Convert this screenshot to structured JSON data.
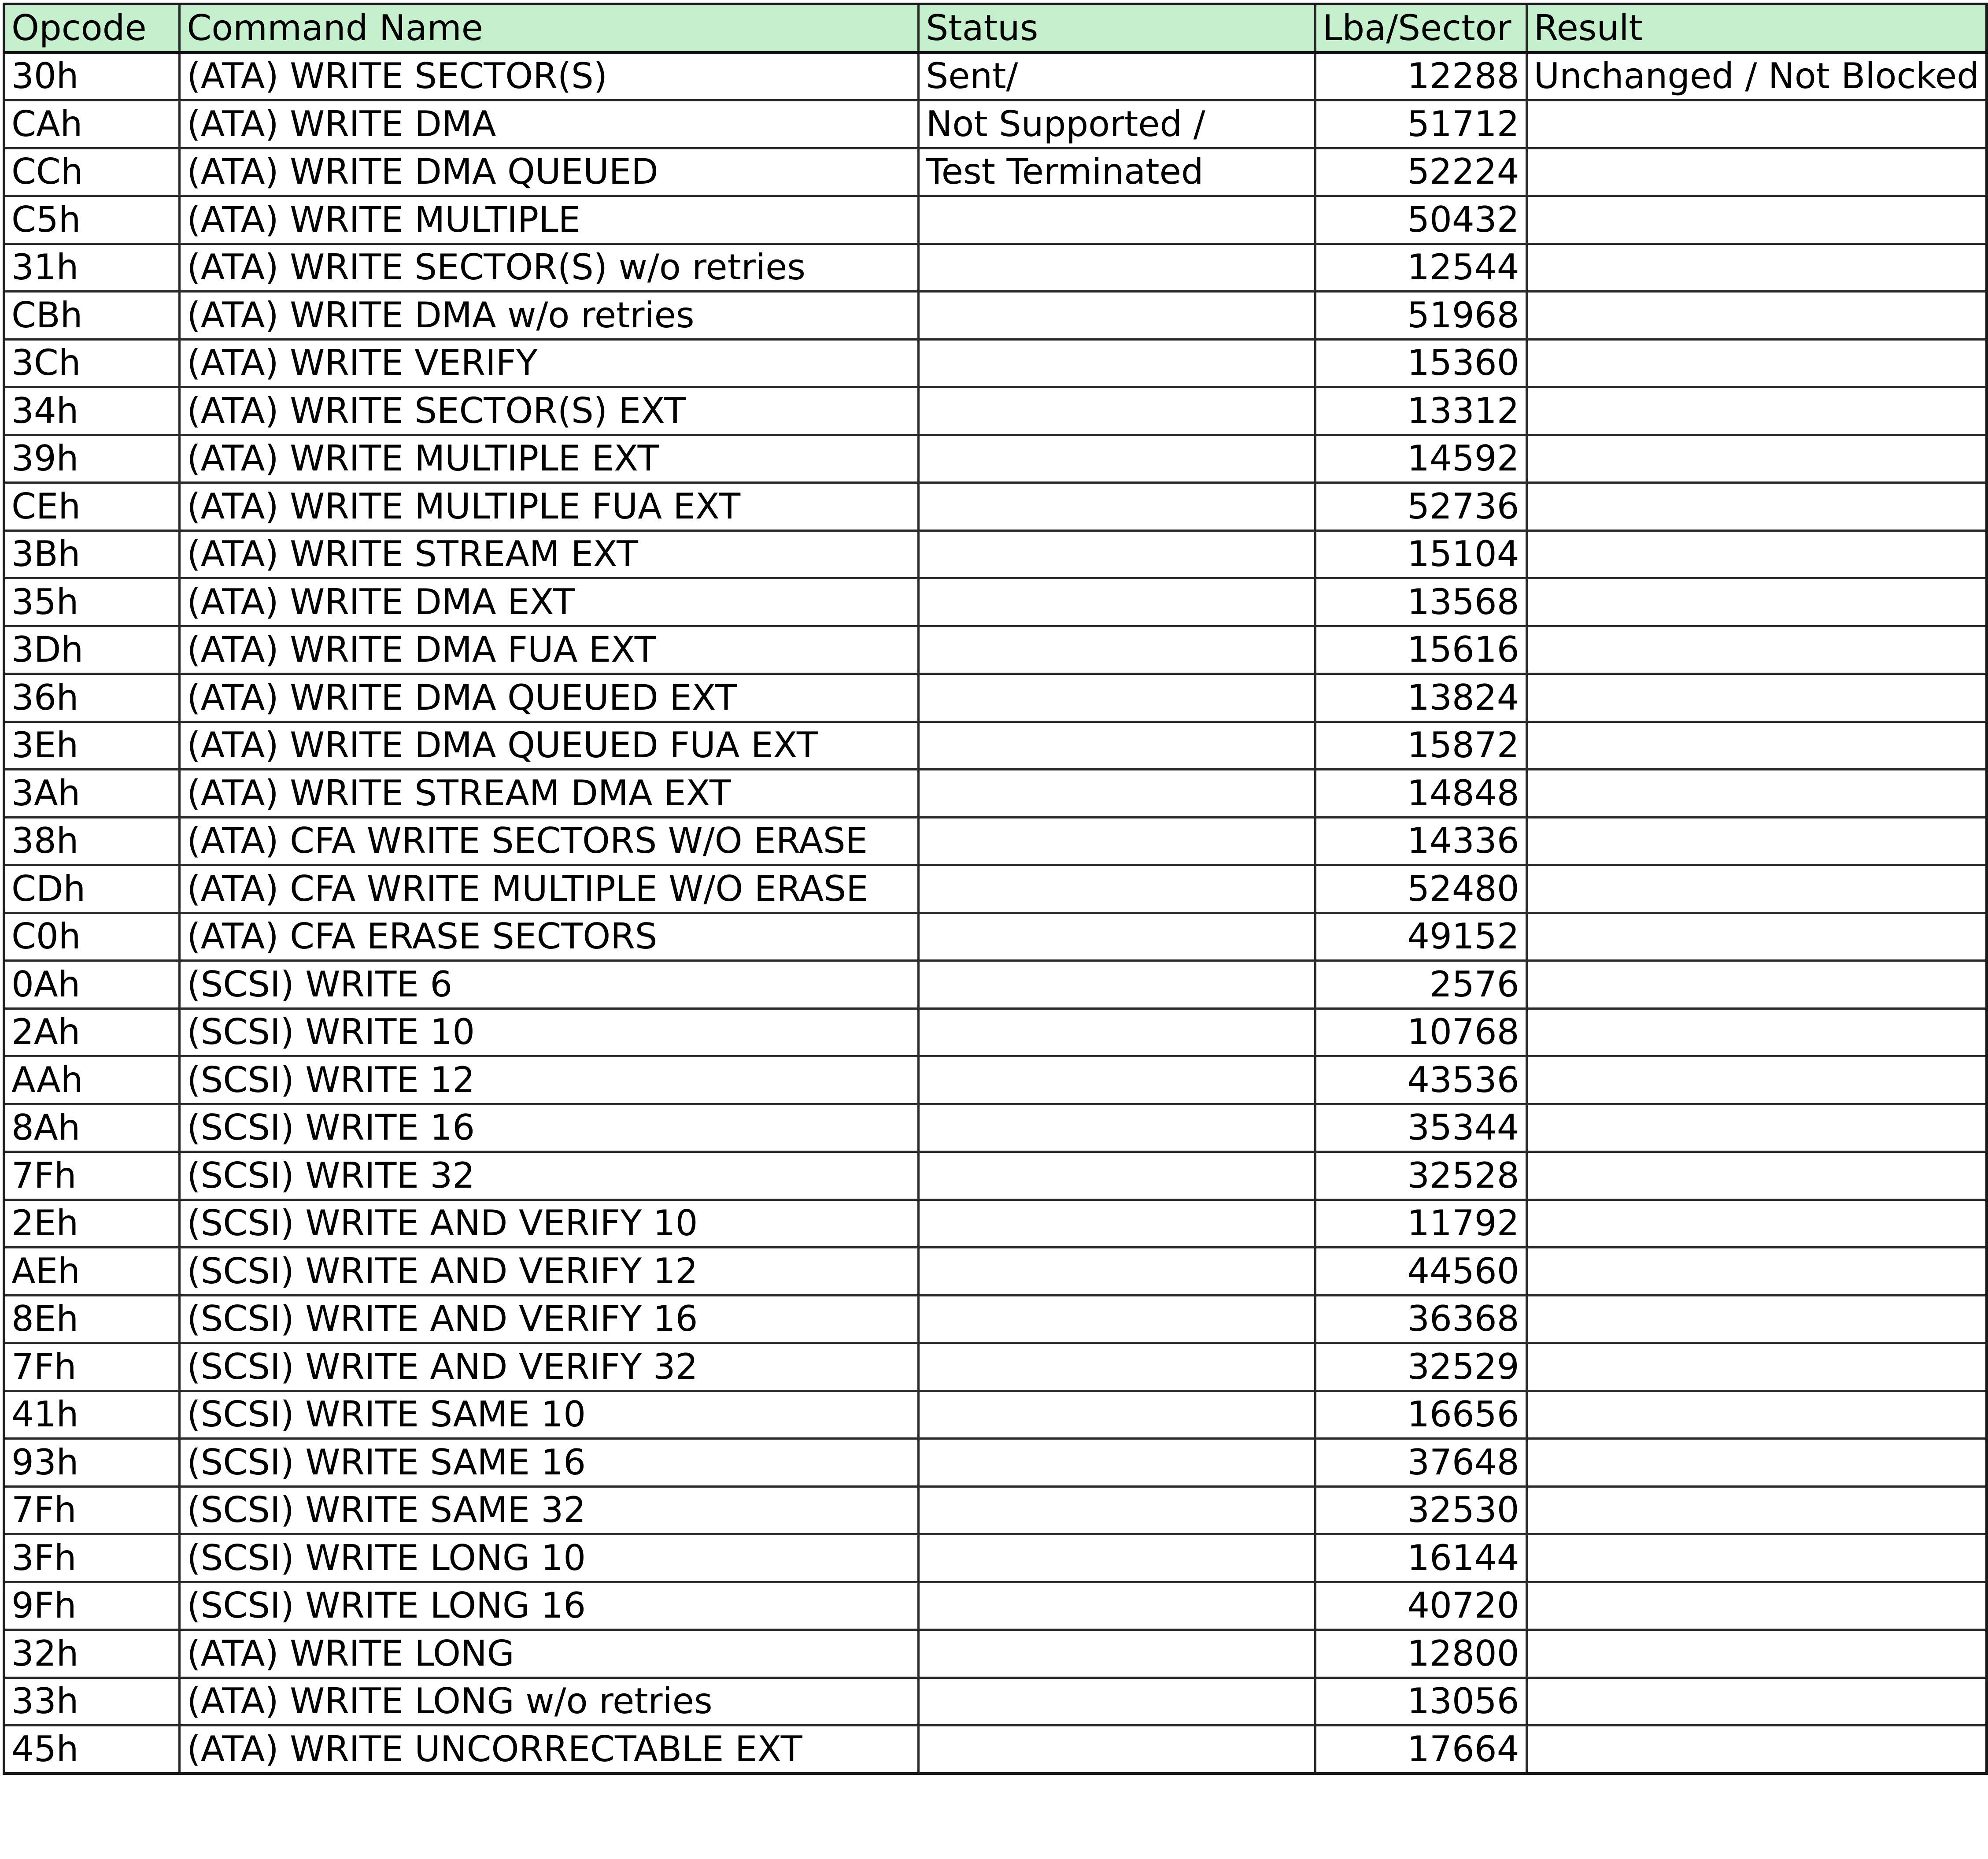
{
  "headers": {
    "opcode": "Opcode",
    "command": "Command Name",
    "status": "Status",
    "lba": "Lba/Sector",
    "result": "Result"
  },
  "status_lines": [
    "Sent/",
    "Not Supported /",
    "Test Terminated"
  ],
  "result_text": "Unchanged / Not Blocked",
  "rows": [
    {
      "opcode": "30h",
      "command": "(ATA) WRITE SECTOR(S)",
      "lba": "12288"
    },
    {
      "opcode": "CAh",
      "command": "(ATA) WRITE DMA",
      "lba": "51712"
    },
    {
      "opcode": "CCh",
      "command": "(ATA) WRITE DMA QUEUED",
      "lba": "52224"
    },
    {
      "opcode": "C5h",
      "command": "(ATA) WRITE MULTIPLE",
      "lba": "50432"
    },
    {
      "opcode": "31h",
      "command": "(ATA) WRITE SECTOR(S) w/o retries",
      "lba": "12544"
    },
    {
      "opcode": "CBh",
      "command": "(ATA) WRITE DMA w/o retries",
      "lba": "51968"
    },
    {
      "opcode": "3Ch",
      "command": "(ATA) WRITE VERIFY",
      "lba": "15360"
    },
    {
      "opcode": "34h",
      "command": "(ATA) WRITE SECTOR(S) EXT",
      "lba": "13312"
    },
    {
      "opcode": "39h",
      "command": "(ATA) WRITE MULTIPLE EXT",
      "lba": "14592"
    },
    {
      "opcode": "CEh",
      "command": "(ATA) WRITE MULTIPLE FUA EXT",
      "lba": "52736"
    },
    {
      "opcode": "3Bh",
      "command": "(ATA) WRITE STREAM EXT",
      "lba": "15104"
    },
    {
      "opcode": "35h",
      "command": "(ATA) WRITE DMA EXT",
      "lba": "13568"
    },
    {
      "opcode": "3Dh",
      "command": "(ATA) WRITE DMA FUA EXT",
      "lba": "15616"
    },
    {
      "opcode": "36h",
      "command": "(ATA) WRITE DMA QUEUED EXT",
      "lba": "13824"
    },
    {
      "opcode": "3Eh",
      "command": "(ATA) WRITE DMA QUEUED FUA EXT",
      "lba": "15872"
    },
    {
      "opcode": "3Ah",
      "command": "(ATA) WRITE STREAM DMA EXT",
      "lba": "14848"
    },
    {
      "opcode": "38h",
      "command": "(ATA) CFA WRITE SECTORS W/O ERASE",
      "lba": "14336"
    },
    {
      "opcode": "CDh",
      "command": "(ATA) CFA WRITE MULTIPLE W/O ERASE",
      "lba": "52480"
    },
    {
      "opcode": "C0h",
      "command": "(ATA) CFA ERASE SECTORS",
      "lba": "49152"
    },
    {
      "opcode": "0Ah",
      "command": "(SCSI) WRITE 6",
      "lba": "2576"
    },
    {
      "opcode": "2Ah",
      "command": "(SCSI) WRITE 10",
      "lba": "10768"
    },
    {
      "opcode": "AAh",
      "command": "(SCSI) WRITE 12",
      "lba": "43536"
    },
    {
      "opcode": "8Ah",
      "command": "(SCSI) WRITE 16",
      "lba": "35344"
    },
    {
      "opcode": "7Fh",
      "command": "(SCSI) WRITE 32",
      "lba": "32528"
    },
    {
      "opcode": "2Eh",
      "command": "(SCSI) WRITE AND VERIFY 10",
      "lba": "11792"
    },
    {
      "opcode": "AEh",
      "command": "(SCSI) WRITE AND VERIFY 12",
      "lba": "44560"
    },
    {
      "opcode": "8Eh",
      "command": "(SCSI) WRITE AND VERIFY 16",
      "lba": "36368"
    },
    {
      "opcode": "7Fh",
      "command": "(SCSI) WRITE AND VERIFY 32",
      "lba": "32529"
    },
    {
      "opcode": "41h",
      "command": "(SCSI) WRITE SAME 10",
      "lba": "16656"
    },
    {
      "opcode": "93h",
      "command": "(SCSI) WRITE SAME 16",
      "lba": "37648"
    },
    {
      "opcode": "7Fh",
      "command": "(SCSI) WRITE SAME 32",
      "lba": "32530"
    },
    {
      "opcode": "3Fh",
      "command": "(SCSI) WRITE LONG 10",
      "lba": "16144"
    },
    {
      "opcode": "9Fh",
      "command": "(SCSI) WRITE LONG 16",
      "lba": "40720"
    },
    {
      "opcode": "32h",
      "command": "(ATA) WRITE LONG",
      "lba": "12800"
    },
    {
      "opcode": "33h",
      "command": "(ATA) WRITE LONG w/o retries",
      "lba": "13056"
    },
    {
      "opcode": "45h",
      "command": "(ATA) WRITE UNCORRECTABLE EXT",
      "lba": "17664"
    }
  ]
}
